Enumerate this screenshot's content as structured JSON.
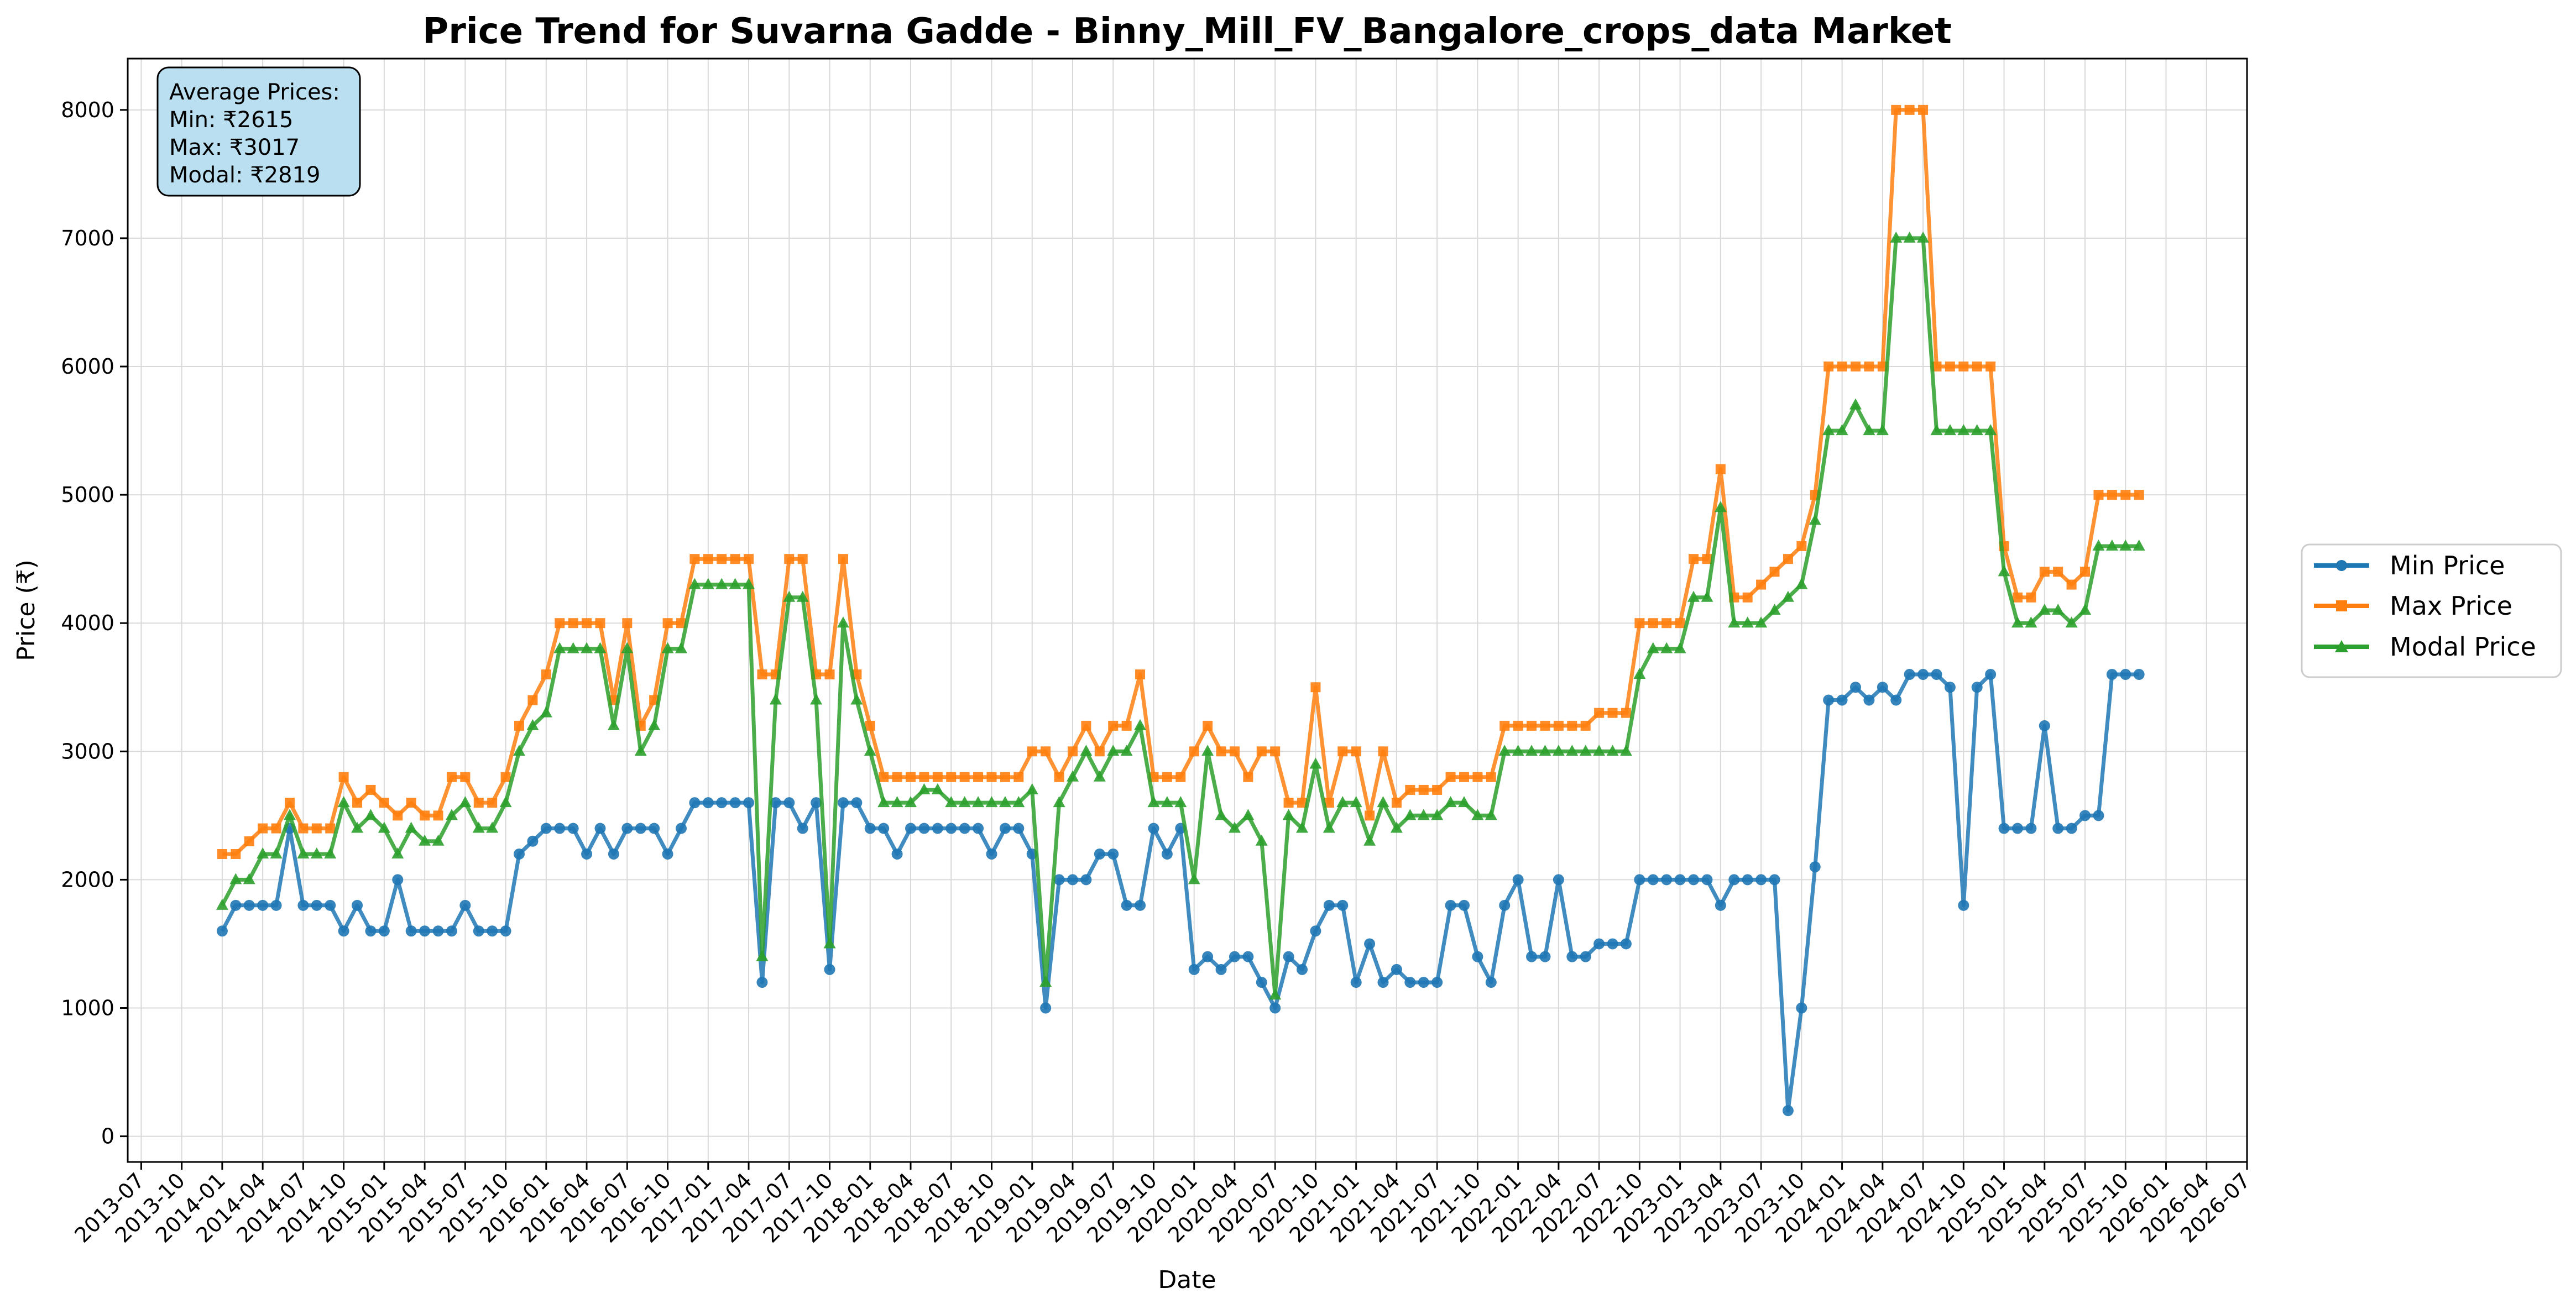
{
  "chart_data": {
    "type": "line",
    "title": "Price Trend for Suvarna Gadde - Binny_Mill_FV_Bangalore_crops_data Market",
    "xlabel": "Date",
    "ylabel": "Price (₹)",
    "xlim": [
      "2013-06",
      "2026-07"
    ],
    "ylim": [
      -200,
      8400
    ],
    "yticks": [
      0,
      1000,
      2000,
      3000,
      4000,
      5000,
      6000,
      7000,
      8000
    ],
    "xticks": [
      "2013-07",
      "2013-10",
      "2014-01",
      "2014-04",
      "2014-07",
      "2014-10",
      "2015-01",
      "2015-04",
      "2015-07",
      "2015-10",
      "2016-01",
      "2016-04",
      "2016-07",
      "2016-10",
      "2017-01",
      "2017-04",
      "2017-07",
      "2017-10",
      "2018-01",
      "2018-04",
      "2018-07",
      "2018-10",
      "2019-01",
      "2019-04",
      "2019-07",
      "2019-10",
      "2020-01",
      "2020-04",
      "2020-07",
      "2020-10",
      "2021-01",
      "2021-04",
      "2021-07",
      "2021-10",
      "2022-01",
      "2022-04",
      "2022-07",
      "2022-10",
      "2023-01",
      "2023-04",
      "2023-07",
      "2023-10",
      "2024-01",
      "2024-04",
      "2024-07",
      "2024-10",
      "2025-01",
      "2025-04",
      "2025-07",
      "2025-10",
      "2026-01",
      "2026-04",
      "2026-07"
    ],
    "grid": true,
    "legend_position": "right",
    "x": [
      "2014-01",
      "2014-02",
      "2014-03",
      "2014-04",
      "2014-05",
      "2014-06",
      "2014-07",
      "2014-08",
      "2014-09",
      "2014-10",
      "2014-11",
      "2014-12",
      "2015-01",
      "2015-02",
      "2015-03",
      "2015-04",
      "2015-05",
      "2015-06",
      "2015-07",
      "2015-08",
      "2015-09",
      "2015-10",
      "2015-11",
      "2015-12",
      "2016-01",
      "2016-02",
      "2016-03",
      "2016-04",
      "2016-05",
      "2016-06",
      "2016-07",
      "2016-08",
      "2016-09",
      "2016-10",
      "2016-11",
      "2016-12",
      "2017-01",
      "2017-02",
      "2017-03",
      "2017-04",
      "2017-05",
      "2017-06",
      "2017-07",
      "2017-08",
      "2017-09",
      "2017-10",
      "2017-11",
      "2017-12",
      "2018-01",
      "2018-02",
      "2018-03",
      "2018-04",
      "2018-05",
      "2018-06",
      "2018-07",
      "2018-08",
      "2018-09",
      "2018-10",
      "2018-11",
      "2018-12",
      "2019-01",
      "2019-02",
      "2019-03",
      "2019-04",
      "2019-05",
      "2019-06",
      "2019-07",
      "2019-08",
      "2019-09",
      "2019-10",
      "2019-11",
      "2019-12",
      "2020-01",
      "2020-02",
      "2020-03",
      "2020-04",
      "2020-05",
      "2020-06",
      "2020-07",
      "2020-08",
      "2020-09",
      "2020-10",
      "2020-11",
      "2020-12",
      "2021-01",
      "2021-02",
      "2021-03",
      "2021-04",
      "2021-05",
      "2021-06",
      "2021-07",
      "2021-08",
      "2021-09",
      "2021-10",
      "2021-11",
      "2021-12",
      "2022-01",
      "2022-02",
      "2022-03",
      "2022-04",
      "2022-05",
      "2022-06",
      "2022-07",
      "2022-08",
      "2022-09",
      "2022-10",
      "2022-11",
      "2022-12",
      "2023-01",
      "2023-02",
      "2023-03",
      "2023-04",
      "2023-05",
      "2023-06",
      "2023-07",
      "2023-08",
      "2023-09",
      "2023-10",
      "2023-11",
      "2023-12",
      "2024-01",
      "2024-02",
      "2024-03",
      "2024-04",
      "2024-05",
      "2024-06",
      "2024-07",
      "2024-08",
      "2024-09",
      "2024-10",
      "2024-11",
      "2024-12",
      "2025-01",
      "2025-02",
      "2025-03",
      "2025-04",
      "2025-05",
      "2025-06",
      "2025-07",
      "2025-08",
      "2025-09",
      "2025-10",
      "2025-11"
    ],
    "series": [
      {
        "name": "Min Price",
        "color": "#1f77b4",
        "marker": "circle",
        "values": [
          1600,
          1800,
          1800,
          1800,
          1800,
          2400,
          1800,
          1800,
          1800,
          1600,
          1800,
          1600,
          1600,
          2000,
          1600,
          1600,
          1600,
          1600,
          1800,
          1600,
          1600,
          1600,
          2200,
          2300,
          2400,
          2400,
          2400,
          2200,
          2400,
          2200,
          2400,
          2400,
          2400,
          2200,
          2400,
          2600,
          2600,
          2600,
          2600,
          2600,
          1200,
          2600,
          2600,
          2400,
          2600,
          1300,
          2600,
          2600,
          2400,
          2400,
          2200,
          2400,
          2400,
          2400,
          2400,
          2400,
          2400,
          2200,
          2400,
          2400,
          2200,
          1000,
          2000,
          2000,
          2000,
          2200,
          2200,
          1800,
          1800,
          2400,
          2200,
          2400,
          1300,
          1400,
          1300,
          1400,
          1400,
          1200,
          1000,
          1400,
          1300,
          1600,
          1800,
          1800,
          1200,
          1500,
          1200,
          1300,
          1200,
          1200,
          1200,
          1800,
          1800,
          1400,
          1200,
          1800,
          2000,
          1400,
          1400,
          2000,
          1400,
          1400,
          1500,
          1500,
          1500,
          2000,
          2000,
          2000,
          2000,
          2000,
          2000,
          1800,
          2000,
          2000,
          2000,
          2000,
          200,
          1000,
          2100,
          3400,
          3400,
          3500,
          3400,
          3500,
          3400,
          3600,
          3600,
          3600,
          3500,
          1800,
          3500,
          3600,
          2400,
          2400,
          2400,
          3200,
          2400,
          2400,
          2500,
          2500,
          3600,
          3600,
          3600
        ],
        "series_index": 0
      },
      {
        "name": "Max Price",
        "color": "#ff7f0e",
        "marker": "square",
        "values": [
          2200,
          2200,
          2300,
          2400,
          2400,
          2600,
          2400,
          2400,
          2400,
          2800,
          2600,
          2700,
          2600,
          2500,
          2600,
          2500,
          2500,
          2800,
          2800,
          2600,
          2600,
          2800,
          3200,
          3400,
          3600,
          4000,
          4000,
          4000,
          4000,
          3400,
          4000,
          3200,
          3400,
          4000,
          4000,
          4500,
          4500,
          4500,
          4500,
          4500,
          3600,
          3600,
          4500,
          4500,
          3600,
          3600,
          4500,
          3600,
          3200,
          2800,
          2800,
          2800,
          2800,
          2800,
          2800,
          2800,
          2800,
          2800,
          2800,
          2800,
          3000,
          3000,
          2800,
          3000,
          3200,
          3000,
          3200,
          3200,
          3600,
          2800,
          2800,
          2800,
          3000,
          3200,
          3000,
          3000,
          2800,
          3000,
          3000,
          2600,
          2600,
          3500,
          2600,
          3000,
          3000,
          2500,
          3000,
          2600,
          2700,
          2700,
          2700,
          2800,
          2800,
          2800,
          2800,
          3200,
          3200,
          3200,
          3200,
          3200,
          3200,
          3200,
          3300,
          3300,
          3300,
          4000,
          4000,
          4000,
          4000,
          4500,
          4500,
          5200,
          4200,
          4200,
          4300,
          4400,
          4500,
          4600,
          5000,
          6000,
          6000,
          6000,
          6000,
          6000,
          8000,
          8000,
          8000,
          6000,
          6000,
          6000,
          6000,
          6000,
          4600,
          4200,
          4200,
          4400,
          4400,
          4300,
          4400,
          5000,
          5000,
          5000,
          5000
        ],
        "series_index": 1
      },
      {
        "name": "Modal Price",
        "color": "#2ca02c",
        "marker": "triangle",
        "values": [
          1800,
          2000,
          2000,
          2200,
          2200,
          2500,
          2200,
          2200,
          2200,
          2600,
          2400,
          2500,
          2400,
          2200,
          2400,
          2300,
          2300,
          2500,
          2600,
          2400,
          2400,
          2600,
          3000,
          3200,
          3300,
          3800,
          3800,
          3800,
          3800,
          3200,
          3800,
          3000,
          3200,
          3800,
          3800,
          4300,
          4300,
          4300,
          4300,
          4300,
          1400,
          3400,
          4200,
          4200,
          3400,
          1500,
          4000,
          3400,
          3000,
          2600,
          2600,
          2600,
          2700,
          2700,
          2600,
          2600,
          2600,
          2600,
          2600,
          2600,
          2700,
          1200,
          2600,
          2800,
          3000,
          2800,
          3000,
          3000,
          3200,
          2600,
          2600,
          2600,
          2000,
          3000,
          2500,
          2400,
          2500,
          2300,
          1100,
          2500,
          2400,
          2900,
          2400,
          2600,
          2600,
          2300,
          2600,
          2400,
          2500,
          2500,
          2500,
          2600,
          2600,
          2500,
          2500,
          3000,
          3000,
          3000,
          3000,
          3000,
          3000,
          3000,
          3000,
          3000,
          3000,
          3600,
          3800,
          3800,
          3800,
          4200,
          4200,
          4900,
          4000,
          4000,
          4000,
          4100,
          4200,
          4300,
          4800,
          5500,
          5500,
          5700,
          5500,
          5500,
          7000,
          7000,
          7000,
          5500,
          5500,
          5500,
          5500,
          5500,
          4400,
          4000,
          4000,
          4100,
          4100,
          4000,
          4100,
          4600,
          4600,
          4600,
          4600
        ],
        "series_index": 2
      }
    ],
    "legend": [
      "Min Price",
      "Max Price",
      "Modal Price"
    ],
    "annotation": {
      "title": "Average Prices:",
      "lines": [
        "Min: ₹2615",
        "Max: ₹3017",
        "Modal: ₹2819"
      ],
      "background": "#b9dff0"
    }
  }
}
